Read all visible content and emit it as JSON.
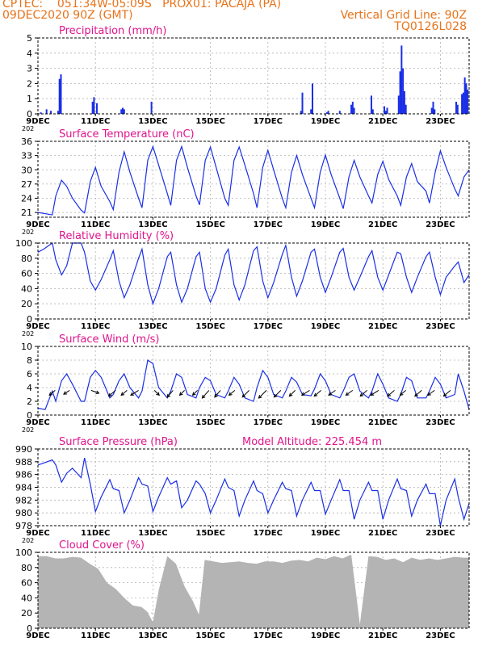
{
  "header": {
    "line1_left": "CPTEC:    051:34W-05:09S   PROX01: PACAJA (PA)",
    "line2_left": "09DEC2020 90Z (GMT)",
    "grid_line": "Vertical Grid Line: 90Z",
    "code": "TQ0126L028"
  },
  "colors": {
    "header": "#e8731a",
    "panel_title": "#e0148c",
    "series": "#1a2fe6",
    "cloud": "#b4b4b4",
    "grid": "#b0b0b0",
    "arrow": "#000000"
  },
  "x_axis": {
    "start_day": 9,
    "end_day": 24,
    "tick_labels": [
      "9DEC",
      "11DEC",
      "13DEC",
      "15DEC",
      "17DEC",
      "19DEC",
      "21DEC",
      "23DEC"
    ],
    "tick_days": [
      9,
      11,
      13,
      15,
      17,
      19,
      21,
      23
    ],
    "year_fragment": "202"
  },
  "chart_data": [
    {
      "type": "bar",
      "title": "Precipitation (mm/h)",
      "ylim": [
        0,
        5
      ],
      "yticks": [
        "0",
        "1",
        "2",
        "3",
        "4",
        "5"
      ],
      "x": [
        9.1,
        9.3,
        9.45,
        9.7,
        9.75,
        9.8,
        10.9,
        10.95,
        11.05,
        11.9,
        11.95,
        12.0,
        12.95,
        18.15,
        18.2,
        18.5,
        18.55,
        19.05,
        19.1,
        19.5,
        19.9,
        19.95,
        20.0,
        20.6,
        20.65,
        21.05,
        21.1,
        21.15,
        21.55,
        21.6,
        21.65,
        21.7,
        21.75,
        21.8,
        22.7,
        22.75,
        22.8,
        23.55,
        23.6,
        23.75,
        23.8,
        23.85,
        23.9,
        23.95
      ],
      "values": [
        0.1,
        0.3,
        0.2,
        0.2,
        2.3,
        2.6,
        0.8,
        1.1,
        0.7,
        0.3,
        0.4,
        0.3,
        0.8,
        0.2,
        1.4,
        0.3,
        2.0,
        0.1,
        0.2,
        0.2,
        0.6,
        0.8,
        0.4,
        1.2,
        0.3,
        0.5,
        0.2,
        0.4,
        1.2,
        2.8,
        4.5,
        3.0,
        1.5,
        0.6,
        0.4,
        0.8,
        0.3,
        0.8,
        0.6,
        1.3,
        1.4,
        2.4,
        2.0,
        1.6
      ]
    },
    {
      "type": "line",
      "title": "Surface Temperature (nC)",
      "ylim": [
        20,
        36
      ],
      "yticks": [
        "21",
        "24",
        "27",
        "30",
        "33",
        "36"
      ],
      "x": [
        9.0,
        9.2,
        9.5,
        9.62,
        9.82,
        10.0,
        10.2,
        10.5,
        10.62,
        10.82,
        11.0,
        11.2,
        11.5,
        11.62,
        11.82,
        12.0,
        12.2,
        12.5,
        12.62,
        12.82,
        13.0,
        13.2,
        13.5,
        13.62,
        13.82,
        14.0,
        14.2,
        14.5,
        14.62,
        14.82,
        15.0,
        15.2,
        15.5,
        15.62,
        15.82,
        16.0,
        16.2,
        16.5,
        16.62,
        16.82,
        17.0,
        17.2,
        17.5,
        17.62,
        17.82,
        18.0,
        18.2,
        18.5,
        18.62,
        18.82,
        19.0,
        19.2,
        19.5,
        19.62,
        19.82,
        20.0,
        20.2,
        20.5,
        20.62,
        20.82,
        21.0,
        21.2,
        21.5,
        21.62,
        21.82,
        22.0,
        22.2,
        22.5,
        22.62,
        22.82,
        23.0,
        23.2,
        23.5,
        23.62,
        23.82,
        24.0
      ],
      "values": [
        21.0,
        20.8,
        20.5,
        24.5,
        27.8,
        26.5,
        24.0,
        21.5,
        20.9,
        27.5,
        30.5,
        26.5,
        23.3,
        21.6,
        29.5,
        33.8,
        29.5,
        24.0,
        22.0,
        32.0,
        34.9,
        31.0,
        25.0,
        22.5,
        32.0,
        34.9,
        30.5,
        24.5,
        22.6,
        32.0,
        34.8,
        30.5,
        24.0,
        22.5,
        32.0,
        34.8,
        31.0,
        25.0,
        22.0,
        30.5,
        34.1,
        30.0,
        24.0,
        22.0,
        29.5,
        33.0,
        29.0,
        24.0,
        22.0,
        29.5,
        33.1,
        29.0,
        24.0,
        21.8,
        28.5,
        32.0,
        28.5,
        24.5,
        23.0,
        29.0,
        31.8,
        28.0,
        24.5,
        22.5,
        28.5,
        31.3,
        27.5,
        25.5,
        23.0,
        29.5,
        34.0,
        30.5,
        26.0,
        24.5,
        28.5,
        30.0
      ]
    },
    {
      "type": "line",
      "title": "Relative Humidity (%)",
      "ylim": [
        0,
        100
      ],
      "yticks": [
        "0",
        "20",
        "40",
        "60",
        "80",
        "100"
      ],
      "x": [
        9.0,
        9.2,
        9.5,
        9.62,
        9.82,
        10.0,
        10.2,
        10.5,
        10.62,
        10.82,
        11.0,
        11.2,
        11.5,
        11.62,
        11.82,
        12.0,
        12.2,
        12.5,
        12.62,
        12.82,
        13.0,
        13.2,
        13.5,
        13.62,
        13.82,
        14.0,
        14.2,
        14.5,
        14.62,
        14.82,
        15.0,
        15.2,
        15.5,
        15.62,
        15.82,
        16.0,
        16.2,
        16.5,
        16.62,
        16.82,
        17.0,
        17.2,
        17.5,
        17.62,
        17.82,
        18.0,
        18.2,
        18.5,
        18.62,
        18.82,
        19.0,
        19.2,
        19.5,
        19.62,
        19.82,
        20.0,
        20.2,
        20.5,
        20.62,
        20.82,
        21.0,
        21.2,
        21.5,
        21.62,
        21.82,
        22.0,
        22.2,
        22.5,
        22.62,
        22.82,
        23.0,
        23.2,
        23.5,
        23.62,
        23.82,
        24.0
      ],
      "values": [
        88,
        92,
        100,
        78,
        58,
        70,
        100,
        100,
        88,
        50,
        38,
        52,
        78,
        90,
        50,
        28,
        45,
        80,
        92,
        45,
        20,
        40,
        82,
        88,
        45,
        22,
        40,
        82,
        88,
        40,
        22,
        40,
        84,
        92,
        45,
        25,
        45,
        90,
        95,
        50,
        28,
        48,
        85,
        97,
        55,
        30,
        50,
        88,
        92,
        55,
        35,
        55,
        88,
        93,
        55,
        38,
        55,
        82,
        90,
        55,
        38,
        58,
        88,
        86,
        55,
        35,
        55,
        82,
        88,
        55,
        32,
        55,
        70,
        75,
        48,
        58
      ]
    },
    {
      "type": "line",
      "title": "Surface Wind (m/s)",
      "ylim": [
        0,
        10
      ],
      "yticks": [
        "0",
        "2",
        "4",
        "6",
        "8",
        "10"
      ],
      "x": [
        9.0,
        9.25,
        9.5,
        9.62,
        9.82,
        10.0,
        10.2,
        10.5,
        10.62,
        10.82,
        11.0,
        11.2,
        11.5,
        11.62,
        11.82,
        12.0,
        12.2,
        12.5,
        12.62,
        12.82,
        13.0,
        13.2,
        13.5,
        13.62,
        13.82,
        14.0,
        14.2,
        14.5,
        14.62,
        14.82,
        15.0,
        15.2,
        15.5,
        15.62,
        15.82,
        16.0,
        16.2,
        16.5,
        16.62,
        16.82,
        17.0,
        17.2,
        17.5,
        17.62,
        17.82,
        18.0,
        18.2,
        18.5,
        18.62,
        18.82,
        19.0,
        19.2,
        19.5,
        19.62,
        19.82,
        20.0,
        20.2,
        20.5,
        20.62,
        20.82,
        21.0,
        21.2,
        21.5,
        21.62,
        21.82,
        22.0,
        22.2,
        22.5,
        22.62,
        22.82,
        23.0,
        23.2,
        23.5,
        23.62,
        23.82,
        24.0
      ],
      "values": [
        1.0,
        0.8,
        3.5,
        2.0,
        5.0,
        6.0,
        4.5,
        2.0,
        2.0,
        5.5,
        6.5,
        5.5,
        2.5,
        3.0,
        5.0,
        6.0,
        4.0,
        2.5,
        3.5,
        8.0,
        7.5,
        4.0,
        2.5,
        3.5,
        6.0,
        5.5,
        3.0,
        2.5,
        4.0,
        5.5,
        5.0,
        3.0,
        2.5,
        3.5,
        5.5,
        4.5,
        2.5,
        2.0,
        4.0,
        6.5,
        5.5,
        3.0,
        2.5,
        3.5,
        5.5,
        4.8,
        3.0,
        2.8,
        3.8,
        6.0,
        5.0,
        3.0,
        2.5,
        3.5,
        5.5,
        6.0,
        3.5,
        2.5,
        3.5,
        6.0,
        4.5,
        2.5,
        2.0,
        3.0,
        5.5,
        5.0,
        2.5,
        2.5,
        3.5,
        5.5,
        4.5,
        2.5,
        3.0,
        6.0,
        3.5,
        0.8
      ],
      "barb_x": [
        9.6,
        10.1,
        10.85,
        11.7,
        12.1,
        12.5,
        13.05,
        13.7,
        14.1,
        14.55,
        14.95,
        15.35,
        15.85,
        16.35,
        16.95,
        17.45,
        17.95,
        18.45,
        18.85,
        19.35,
        19.95,
        20.45,
        20.85,
        21.4,
        21.8,
        22.35,
        22.8,
        23.35
      ],
      "barb_u": [
        -0.6,
        -0.6,
        0.8,
        -0.7,
        -0.6,
        -0.8,
        0.5,
        -0.6,
        -0.5,
        -0.5,
        -0.7,
        -0.6,
        -0.6,
        -0.7,
        -0.8,
        -0.7,
        -0.6,
        -0.8,
        -0.7,
        -0.7,
        -0.7,
        -0.7,
        -0.8,
        -0.7,
        -0.6,
        -0.7,
        -0.7,
        -0.7
      ],
      "barb_v": [
        -0.5,
        -0.4,
        -0.3,
        -0.6,
        -0.5,
        -0.5,
        -0.5,
        -0.7,
        -0.5,
        -0.5,
        -0.8,
        -0.7,
        -0.5,
        -0.7,
        -0.8,
        -0.7,
        -0.6,
        -0.5,
        -0.6,
        -0.5,
        -0.5,
        -0.6,
        -0.5,
        -0.6,
        -0.5,
        -0.6,
        -0.5,
        -0.6
      ]
    },
    {
      "type": "line",
      "title": "Surface Pressure (hPa)",
      "subtitle": "Model Altitude: 225.454  m",
      "ylim": [
        978,
        990
      ],
      "yticks": [
        "978",
        "980",
        "982",
        "984",
        "986",
        "988",
        "990"
      ],
      "x": [
        9.0,
        9.2,
        9.5,
        9.62,
        9.82,
        10.0,
        10.2,
        10.5,
        10.62,
        10.82,
        11.0,
        11.2,
        11.5,
        11.62,
        11.82,
        12.0,
        12.2,
        12.5,
        12.62,
        12.82,
        13.0,
        13.2,
        13.5,
        13.62,
        13.82,
        14.0,
        14.2,
        14.5,
        14.62,
        14.82,
        15.0,
        15.2,
        15.5,
        15.62,
        15.82,
        16.0,
        16.2,
        16.5,
        16.62,
        16.82,
        17.0,
        17.2,
        17.5,
        17.62,
        17.82,
        18.0,
        18.2,
        18.5,
        18.62,
        18.82,
        19.0,
        19.2,
        19.5,
        19.62,
        19.82,
        20.0,
        20.2,
        20.5,
        20.62,
        20.82,
        21.0,
        21.2,
        21.5,
        21.62,
        21.82,
        22.0,
        22.2,
        22.5,
        22.62,
        22.82,
        23.0,
        23.2,
        23.5,
        23.62,
        23.82,
        24.0
      ],
      "values": [
        987.5,
        987.8,
        988.3,
        987.5,
        984.8,
        986.2,
        987.0,
        985.5,
        988.6,
        984.5,
        980.2,
        982.5,
        985.2,
        983.8,
        983.5,
        980.0,
        982.0,
        985.5,
        984.5,
        984.2,
        980.2,
        982.5,
        985.5,
        984.5,
        985.0,
        980.8,
        982.0,
        985.0,
        984.5,
        983.0,
        980.0,
        982.0,
        985.3,
        984.0,
        983.5,
        979.5,
        982.0,
        985.0,
        983.5,
        983.0,
        980.0,
        982.0,
        984.8,
        983.8,
        983.5,
        979.5,
        982.0,
        984.8,
        983.5,
        983.5,
        979.8,
        982.0,
        985.2,
        983.5,
        983.5,
        979.0,
        982.0,
        984.8,
        983.5,
        983.5,
        979.0,
        982.0,
        985.3,
        983.8,
        983.5,
        979.5,
        982.0,
        984.5,
        983.0,
        983.0,
        978.0,
        982.0,
        985.3,
        982.5,
        979.0,
        981.5
      ]
    },
    {
      "type": "bar",
      "title": "Cloud Cover (%)",
      "ylim": [
        0,
        100
      ],
      "yticks": [
        "0",
        "20",
        "40",
        "60",
        "80",
        "100"
      ],
      "x": [
        9.0,
        9.3,
        9.6,
        9.9,
        10.2,
        10.5,
        10.8,
        11.1,
        11.4,
        11.7,
        12.0,
        12.3,
        12.6,
        12.8,
        13.0,
        13.2,
        13.5,
        13.8,
        14.1,
        14.4,
        14.6,
        14.8,
        15.1,
        15.4,
        15.7,
        16.0,
        16.3,
        16.6,
        16.9,
        17.2,
        17.5,
        17.8,
        18.1,
        18.4,
        18.7,
        19.0,
        19.3,
        19.6,
        19.9,
        20.2,
        20.5,
        20.8,
        21.1,
        21.4,
        21.7,
        22.0,
        22.3,
        22.6,
        22.9,
        23.2,
        23.5,
        23.8
      ],
      "values": [
        95,
        95,
        92,
        92,
        94,
        93,
        85,
        78,
        60,
        52,
        40,
        30,
        28,
        22,
        8,
        50,
        95,
        85,
        55,
        35,
        18,
        90,
        88,
        86,
        87,
        88,
        86,
        85,
        88,
        88,
        86,
        89,
        90,
        88,
        93,
        91,
        95,
        92,
        97,
        5,
        95,
        94,
        90,
        92,
        87,
        93,
        90,
        92,
        90,
        92,
        94,
        93
      ]
    }
  ]
}
